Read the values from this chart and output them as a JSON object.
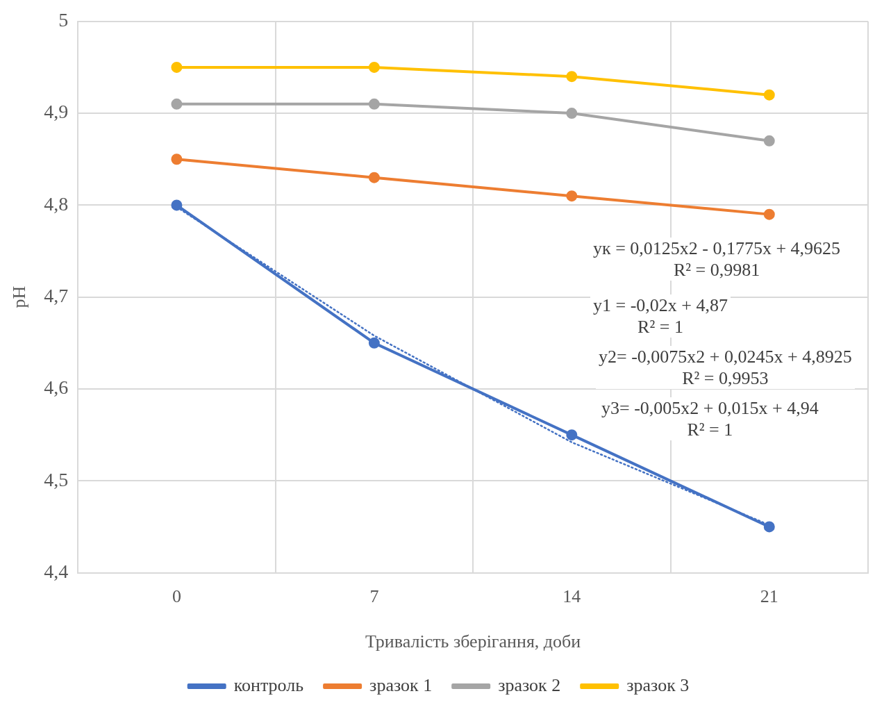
{
  "chart_data": {
    "type": "line",
    "xlabel": "Тривалість зберігання, доби",
    "ylabel": "pH",
    "categories": [
      "0",
      "7",
      "14",
      "21"
    ],
    "ylim": [
      4.4,
      5
    ],
    "yticks": [
      {
        "value": 4.4,
        "label": "4,4"
      },
      {
        "value": 4.5,
        "label": "4,5"
      },
      {
        "value": 4.6,
        "label": "4,6"
      },
      {
        "value": 4.7,
        "label": "4,7"
      },
      {
        "value": 4.8,
        "label": "4,8"
      },
      {
        "value": 4.9,
        "label": "4,9"
      },
      5
    ],
    "grid": true,
    "legend": "bottom",
    "marker": "circle",
    "line_style": "solid",
    "series": [
      {
        "name": "контроль",
        "color": "#4472c4",
        "values": [
          4.8,
          4.65,
          4.55,
          4.45
        ]
      },
      {
        "name": "зразок 1",
        "color": "#ed7d31",
        "values": [
          4.85,
          4.83,
          4.81,
          4.79
        ]
      },
      {
        "name": "зразок 2",
        "color": "#a5a5a5",
        "values": [
          4.91,
          4.91,
          4.9,
          4.87
        ]
      },
      {
        "name": "зразок 3",
        "color": "#ffc000",
        "values": [
          4.95,
          4.95,
          4.94,
          4.92
        ]
      },
      {
        "type": "line",
        "color": "#4472c4",
        "marker": "none",
        "line_style": "dotted",
        "values": [
          4.798,
          4.658,
          4.542,
          4.452
        ]
      }
    ],
    "annotations": [
      "yк = 0,0125x2 - 0,1775x + 4,9625\nR² = 0,9981",
      "y1 = -0,02x + 4,87\nR² = 1",
      "y2= -0,0075x2 + 0,0245x + 4,8925\nR² = 0,9953",
      "y3= -0,005x2 + 0,015x + 4,94\nR² = 1"
    ]
  }
}
